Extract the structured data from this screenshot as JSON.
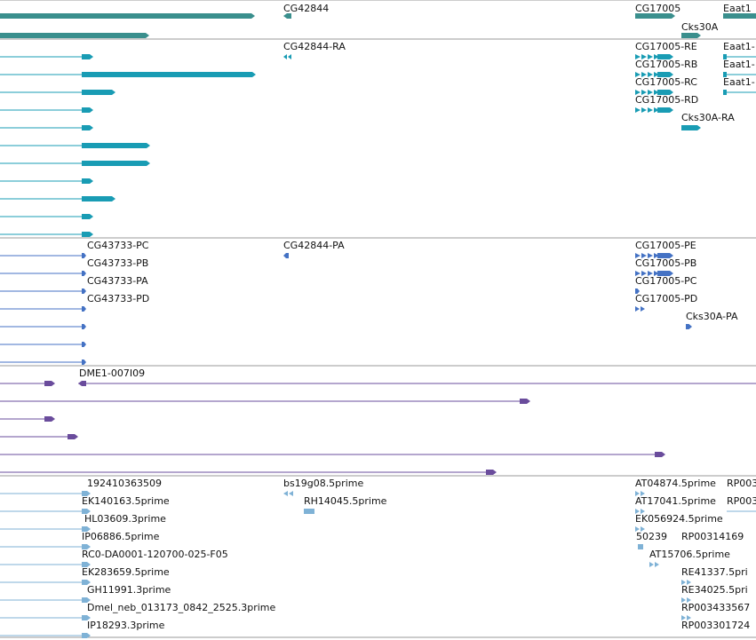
{
  "colors": {
    "background": "#ffffff",
    "divider": "#9a9a9a",
    "gene_track": "#3a8f8d",
    "cdna_track": "#199cb4",
    "protein_track": "#4472c4",
    "clone_track": "#6a4c9c",
    "est_track": "#7fb2d6"
  },
  "tracks": [
    {
      "key": "genes",
      "labels": [
        "CG42844",
        "CG17005",
        "Eaat1",
        "Cks30A"
      ]
    },
    {
      "key": "transcripts",
      "labels": [
        "CG42844-RA",
        "CG17005-RE",
        "CG17005-RB",
        "CG17005-RC",
        "CG17005-RD",
        "Cks30A-RA",
        "Eaat1-",
        "Eaat1-",
        "Eaat1-"
      ]
    },
    {
      "key": "proteins",
      "labels": [
        "CG43733-PC",
        "CG43733-PB",
        "CG43733-PA",
        "CG43733-PD",
        "CG42844-PA",
        "CG17005-PE",
        "CG17005-PB",
        "CG17005-PC",
        "CG17005-PD",
        "Cks30A-PA"
      ]
    },
    {
      "key": "clones",
      "labels": [
        "DME1-007I09"
      ]
    },
    {
      "key": "ests",
      "labels": [
        "192410363509",
        "EK140163.5prime",
        "HL03609.3prime",
        "IP06886.5prime",
        "RC0-DA0001-120700-025-F05",
        "EK283659.5prime",
        "GH11991.3prime",
        "Dmel_neb_013173_0842_2525.3prime",
        "IP18293.3prime",
        "bs19g08.5prime",
        "RH14045.5prime",
        "AT04874.5prime",
        "RP003",
        "AT17041.5prime",
        "RP003",
        "EK056924.5prime",
        "50239",
        "RP00314169",
        "AT15706.5prime",
        "RE41337.5pri",
        "RE34025.5pri",
        "RP003433567",
        "RP003301724"
      ]
    }
  ]
}
